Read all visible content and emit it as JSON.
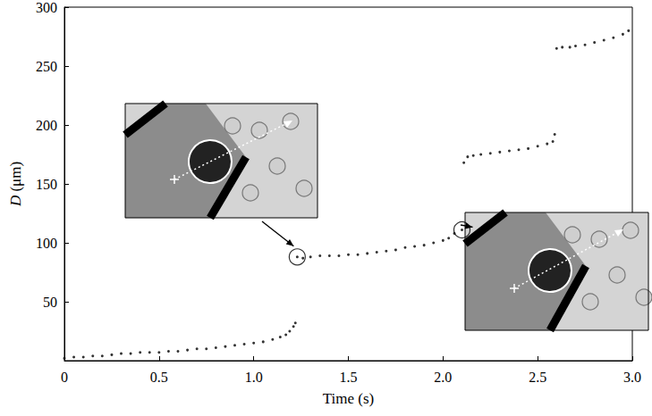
{
  "chart_data": {
    "type": "scatter",
    "x_label": "Time (s)",
    "y_label": "D (μm)",
    "x": [
      0.0,
      0.05,
      0.1,
      0.15,
      0.2,
      0.25,
      0.3,
      0.35,
      0.4,
      0.45,
      0.5,
      0.55,
      0.6,
      0.65,
      0.7,
      0.75,
      0.8,
      0.85,
      0.9,
      0.95,
      1.0,
      1.05,
      1.1,
      1.14,
      1.17,
      1.19,
      1.21,
      1.22,
      1.23,
      1.26,
      1.3,
      1.35,
      1.4,
      1.45,
      1.5,
      1.55,
      1.6,
      1.65,
      1.7,
      1.75,
      1.8,
      1.85,
      1.9,
      1.95,
      2.0,
      2.03,
      2.06,
      2.1,
      2.11,
      2.13,
      2.16,
      2.2,
      2.25,
      2.3,
      2.35,
      2.4,
      2.45,
      2.5,
      2.55,
      2.58,
      2.59,
      2.6,
      2.63,
      2.67,
      2.7,
      2.75,
      2.8,
      2.85,
      2.9,
      2.95,
      2.98
    ],
    "y": [
      2,
      3,
      3,
      4,
      4,
      5,
      6,
      6,
      7,
      7,
      7,
      8,
      8,
      9,
      10,
      10,
      11,
      12,
      13,
      14,
      15,
      16,
      18,
      20,
      22,
      25,
      29,
      32,
      88,
      87,
      88,
      89,
      89,
      89,
      90,
      90,
      91,
      92,
      93,
      94,
      96,
      97,
      98,
      100,
      102,
      104,
      108,
      111,
      168,
      173,
      174,
      175,
      176,
      177,
      178,
      179,
      180,
      182,
      184,
      186,
      192,
      265,
      266,
      266,
      267,
      268,
      270,
      272,
      274,
      277,
      280
    ],
    "color": "#000000",
    "marker": "circle",
    "highlighted": {
      "x": [
        1.23,
        2.1
      ],
      "y": [
        88,
        111
      ]
    },
    "xlim": [
      0,
      3
    ],
    "xticks": [
      0,
      0.5,
      {
        "value": 1,
        "label": "1.0"
      },
      1.5,
      {
        "value": 2,
        "label": "2.0"
      },
      2.5,
      {
        "value": 3,
        "label": "3.0"
      }
    ],
    "ylim": [
      0,
      300
    ],
    "yticks": [
      50,
      100,
      150,
      200,
      250,
      300
    ],
    "grid": false
  }
}
